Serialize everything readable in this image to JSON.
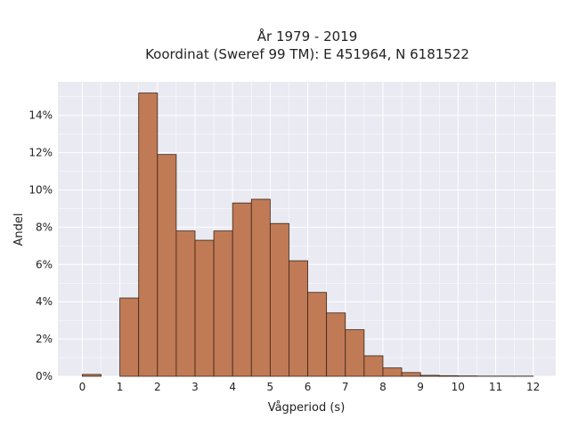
{
  "chart_data": {
    "type": "bar",
    "title": "År 1979 - 2019",
    "subtitle": "Koordinat (Sweref 99 TM): E 451964, N 6181522",
    "xlabel": "Vågperiod (s)",
    "ylabel": "Andel",
    "bin_width": 0.5,
    "bins": [
      {
        "x0": 0.0,
        "value": 0.1
      },
      {
        "x0": 0.5,
        "value": 0.0
      },
      {
        "x0": 1.0,
        "value": 4.2
      },
      {
        "x0": 1.5,
        "value": 15.2
      },
      {
        "x0": 2.0,
        "value": 11.9
      },
      {
        "x0": 2.5,
        "value": 7.8
      },
      {
        "x0": 3.0,
        "value": 7.3
      },
      {
        "x0": 3.5,
        "value": 7.8
      },
      {
        "x0": 4.0,
        "value": 9.3
      },
      {
        "x0": 4.5,
        "value": 9.5
      },
      {
        "x0": 5.0,
        "value": 8.2
      },
      {
        "x0": 5.5,
        "value": 6.2
      },
      {
        "x0": 6.0,
        "value": 4.5
      },
      {
        "x0": 6.5,
        "value": 3.4
      },
      {
        "x0": 7.0,
        "value": 2.5
      },
      {
        "x0": 7.5,
        "value": 1.1
      },
      {
        "x0": 8.0,
        "value": 0.45
      },
      {
        "x0": 8.5,
        "value": 0.2
      },
      {
        "x0": 9.0,
        "value": 0.05
      },
      {
        "x0": 9.5,
        "value": 0.03
      },
      {
        "x0": 10.0,
        "value": 0.02
      },
      {
        "x0": 10.5,
        "value": 0.01
      },
      {
        "x0": 11.0,
        "value": 0.01
      },
      {
        "x0": 11.5,
        "value": 0.01
      }
    ],
    "xlim": [
      -0.65,
      12.6
    ],
    "ylim": [
      0,
      15.8
    ],
    "xticks": [
      0,
      1,
      2,
      3,
      4,
      5,
      6,
      7,
      8,
      9,
      10,
      11,
      12
    ],
    "yticks": [
      0,
      2,
      4,
      6,
      8,
      10,
      12,
      14
    ],
    "ytick_suffix": "%",
    "grid": true,
    "bar_color": "#c07a55",
    "bar_edge_color": "#3a2418",
    "plot_bg_color": "#eaeaf2",
    "grid_color": "#ffffff"
  }
}
